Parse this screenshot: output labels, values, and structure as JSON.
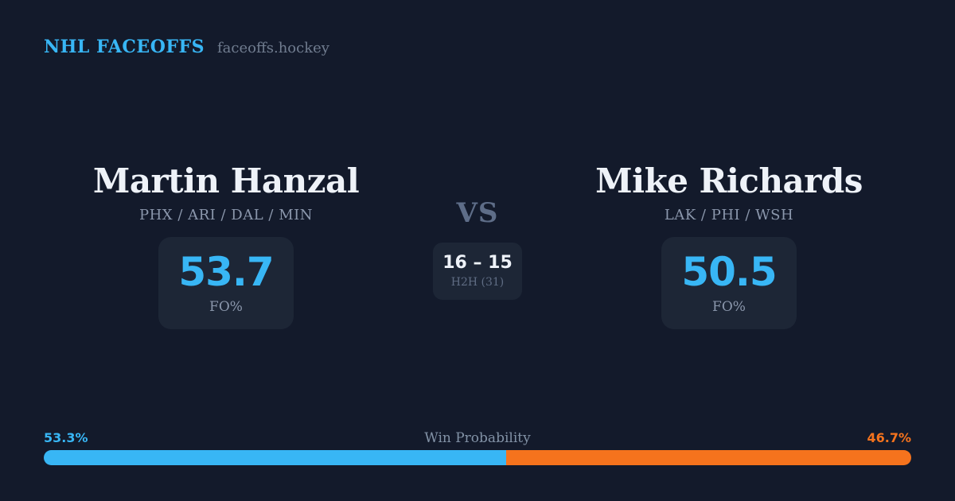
{
  "header": {
    "brand": "NHL FACEOFFS",
    "site": "faceoffs.hockey"
  },
  "matchup": {
    "vs_label": "VS",
    "h2h": {
      "score": "16 – 15",
      "label": "H2H (31)"
    },
    "players": [
      {
        "name": "Martin Hanzal",
        "teams": "PHX / ARI / DAL / MIN",
        "fo_pct": "53.7",
        "fo_label": "FO%"
      },
      {
        "name": "Mike Richards",
        "teams": "LAK / PHI / WSH",
        "fo_pct": "50.5",
        "fo_label": "FO%"
      }
    ]
  },
  "win_probability": {
    "title": "Win Probability",
    "left_pct": "53.3%",
    "right_pct": "46.7%",
    "left_value": 53.3,
    "right_value": 46.7
  },
  "colors": {
    "bg": "#131a2b",
    "card": "#1d2636",
    "accent_blue": "#38b6f5",
    "accent_orange": "#f5731d",
    "text_white": "#eef2f8",
    "text_muted": "#8b97ac",
    "text_vs": "#5e6d88",
    "text_h2h_label": "#5f6c83",
    "text_site": "#707c8f",
    "text_wp_title": "#8292a6"
  }
}
